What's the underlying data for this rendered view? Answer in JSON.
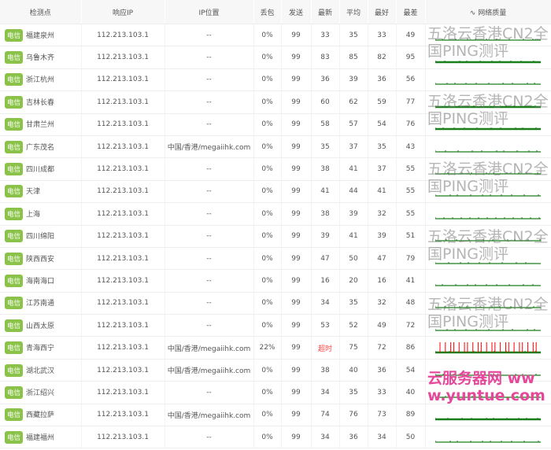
{
  "headers": [
    "检测点",
    "响应IP",
    "IP位置",
    "丢包",
    "发送",
    "最新",
    "平均",
    "最好",
    "最差",
    "网络质量"
  ],
  "quality_icon": "pulse-icon",
  "isp_tag": "电信",
  "colors": {
    "tag": "#8bc34a",
    "line": "#1a7f1a",
    "timeout": "#ff0000"
  },
  "rows": [
    {
      "loc": "福建泉州",
      "ip": "112.213.103.1",
      "geo": "--",
      "loss": "0%",
      "sent": "99",
      "last": "33",
      "avg": "35",
      "best": "33",
      "worst": "49"
    },
    {
      "loc": "乌鲁木齐",
      "ip": "112.213.103.1",
      "geo": "--",
      "loss": "0%",
      "sent": "99",
      "last": "83",
      "avg": "85",
      "best": "82",
      "worst": "95"
    },
    {
      "loc": "浙江杭州",
      "ip": "112.213.103.1",
      "geo": "--",
      "loss": "0%",
      "sent": "99",
      "last": "36",
      "avg": "39",
      "best": "36",
      "worst": "56"
    },
    {
      "loc": "吉林长春",
      "ip": "112.213.103.1",
      "geo": "--",
      "loss": "0%",
      "sent": "99",
      "last": "60",
      "avg": "62",
      "best": "59",
      "worst": "77"
    },
    {
      "loc": "甘肃兰州",
      "ip": "112.213.103.1",
      "geo": "--",
      "loss": "0%",
      "sent": "99",
      "last": "58",
      "avg": "57",
      "best": "54",
      "worst": "76"
    },
    {
      "loc": "广东茂名",
      "ip": "112.213.103.1",
      "geo": "中国/香港/megaiihk.com",
      "loss": "0%",
      "sent": "99",
      "last": "35",
      "avg": "37",
      "best": "35",
      "worst": "43"
    },
    {
      "loc": "四川成都",
      "ip": "112.213.103.1",
      "geo": "--",
      "loss": "0%",
      "sent": "99",
      "last": "38",
      "avg": "41",
      "best": "37",
      "worst": "55"
    },
    {
      "loc": "天津",
      "ip": "112.213.103.1",
      "geo": "--",
      "loss": "0%",
      "sent": "99",
      "last": "41",
      "avg": "44",
      "best": "41",
      "worst": "55"
    },
    {
      "loc": "上海",
      "ip": "112.213.103.1",
      "geo": "--",
      "loss": "0%",
      "sent": "99",
      "last": "38",
      "avg": "39",
      "best": "32",
      "worst": "55"
    },
    {
      "loc": "四川绵阳",
      "ip": "112.213.103.1",
      "geo": "--",
      "loss": "0%",
      "sent": "99",
      "last": "39",
      "avg": "41",
      "best": "39",
      "worst": "51"
    },
    {
      "loc": "陕西西安",
      "ip": "112.213.103.1",
      "geo": "--",
      "loss": "0%",
      "sent": "99",
      "last": "47",
      "avg": "50",
      "best": "47",
      "worst": "79"
    },
    {
      "loc": "海南海口",
      "ip": "112.213.103.1",
      "geo": "--",
      "loss": "0%",
      "sent": "99",
      "last": "16",
      "avg": "20",
      "best": "16",
      "worst": "41"
    },
    {
      "loc": "江苏南通",
      "ip": "112.213.103.1",
      "geo": "--",
      "loss": "0%",
      "sent": "99",
      "last": "34",
      "avg": "35",
      "best": "32",
      "worst": "48"
    },
    {
      "loc": "山西太原",
      "ip": "112.213.103.1",
      "geo": "--",
      "loss": "0%",
      "sent": "99",
      "last": "53",
      "avg": "52",
      "best": "49",
      "worst": "72"
    },
    {
      "loc": "青海西宁",
      "ip": "112.213.103.1",
      "geo": "中国/香港/megaiihk.com",
      "loss": "22%",
      "sent": "99",
      "last": "超时",
      "avg": "75",
      "best": "72",
      "worst": "86",
      "timeout": true
    },
    {
      "loc": "湖北武汉",
      "ip": "112.213.103.1",
      "geo": "中国/香港/megaiihk.com",
      "loss": "0%",
      "sent": "99",
      "last": "38",
      "avg": "40",
      "best": "36",
      "worst": "54"
    },
    {
      "loc": "浙江绍兴",
      "ip": "112.213.103.1",
      "geo": "--",
      "loss": "0%",
      "sent": "99",
      "last": "34",
      "avg": "35",
      "best": "33",
      "worst": "40"
    },
    {
      "loc": "西藏拉萨",
      "ip": "112.213.103.1",
      "geo": "中国/香港/megaiihk.com",
      "loss": "0%",
      "sent": "99",
      "last": "74",
      "avg": "76",
      "best": "73",
      "worst": "89"
    },
    {
      "loc": "福建福州",
      "ip": "112.213.103.1",
      "geo": "--",
      "loss": "0%",
      "sent": "99",
      "last": "34",
      "avg": "36",
      "best": "34",
      "worst": "50"
    }
  ],
  "watermark": "五洛云香港CN2全国PING测评",
  "watermark_site": "云服务器网 www.yuntue.com"
}
